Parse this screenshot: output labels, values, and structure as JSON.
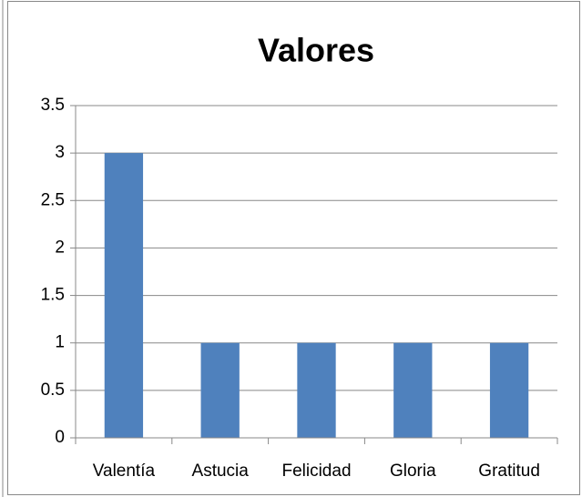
{
  "chart_data": {
    "type": "bar",
    "title": "Valores",
    "categories": [
      "Valentía",
      "Astucia",
      "Felicidad",
      "Gloria",
      "Gratitud"
    ],
    "values": [
      3,
      1,
      1,
      1,
      1
    ],
    "color": "#4f81bd",
    "ylim": [
      0,
      3.5
    ],
    "yticks": [
      0,
      0.5,
      1,
      1.5,
      2,
      2.5,
      3,
      3.5
    ],
    "grid": true
  }
}
